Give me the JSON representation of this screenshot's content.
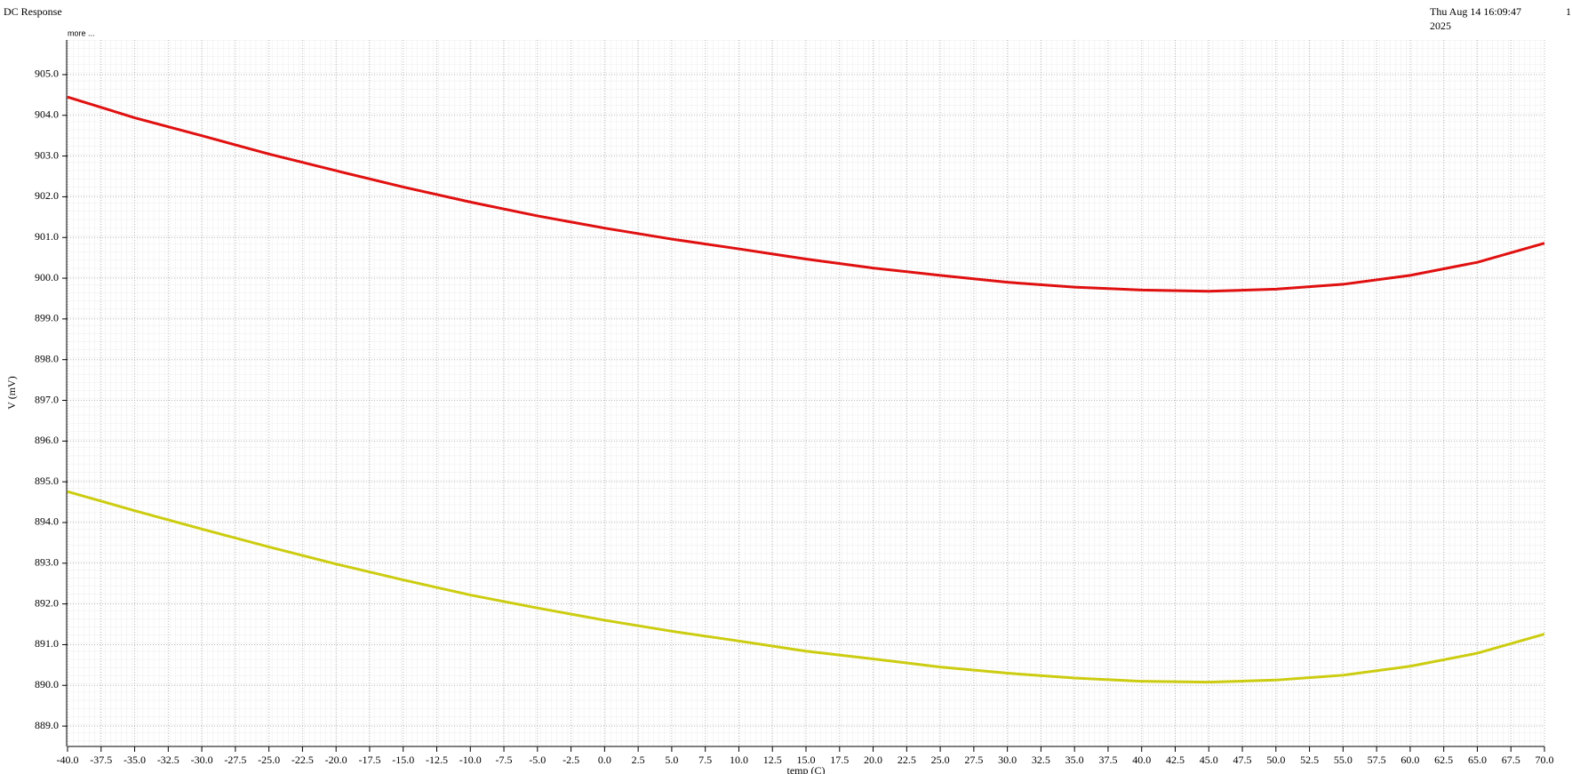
{
  "chart_data": {
    "type": "line",
    "title": "DC Response",
    "timestamp": [
      "Thu Aug 14 16:09:47",
      "2025"
    ],
    "page_number": "1",
    "more_link": "more ...",
    "xlabel": "temp (C)",
    "ylabel": "V (mV)",
    "x": [
      -40,
      -35,
      -30,
      -25,
      -20,
      -15,
      -10,
      -5,
      0,
      5,
      10,
      15,
      20,
      25,
      30,
      35,
      40,
      45,
      50,
      55,
      60,
      65,
      70
    ],
    "series": [
      {
        "color": "#e01010",
        "values": [
          904.45,
          903.94,
          903.5,
          903.05,
          902.64,
          902.24,
          901.87,
          901.53,
          901.23,
          900.96,
          900.72,
          900.47,
          900.25,
          900.07,
          899.9,
          899.78,
          899.71,
          899.68,
          899.73,
          899.85,
          900.07,
          900.39,
          900.86
        ]
      },
      {
        "color": "#cccc10",
        "values": [
          894.76,
          894.29,
          893.84,
          893.4,
          892.98,
          892.59,
          892.22,
          891.9,
          891.6,
          891.33,
          891.09,
          890.84,
          890.65,
          890.45,
          890.3,
          890.18,
          890.1,
          890.08,
          890.13,
          890.25,
          890.47,
          890.79,
          891.26
        ]
      }
    ],
    "xlim": [
      -40,
      70
    ],
    "ylim": [
      888.5,
      905.85
    ],
    "grid": true,
    "xticks": [
      {
        "value": -40,
        "label": "-40.0"
      },
      {
        "value": -37.5,
        "label": "-37.5"
      },
      {
        "value": -35,
        "label": "-35.0"
      },
      {
        "value": -32.5,
        "label": "-32.5"
      },
      {
        "value": -30,
        "label": "-30.0"
      },
      {
        "value": -27.5,
        "label": "-27.5"
      },
      {
        "value": -25,
        "label": "-25.0"
      },
      {
        "value": -22.5,
        "label": "-22.5"
      },
      {
        "value": -20,
        "label": "-20.0"
      },
      {
        "value": -17.5,
        "label": "-17.5"
      },
      {
        "value": -15,
        "label": "-15.0"
      },
      {
        "value": -12.5,
        "label": "-12.5"
      },
      {
        "value": -10,
        "label": "-10.0"
      },
      {
        "value": -7.5,
        "label": "-7.5"
      },
      {
        "value": -5,
        "label": "-5.0"
      },
      {
        "value": -2.5,
        "label": "-2.5"
      },
      {
        "value": 0,
        "label": "0.0"
      },
      {
        "value": 2.5,
        "label": "2.5"
      },
      {
        "value": 5,
        "label": "5.0"
      },
      {
        "value": 7.5,
        "label": "7.5"
      },
      {
        "value": 10,
        "label": "10.0"
      },
      {
        "value": 12.5,
        "label": "12.5"
      },
      {
        "value": 15,
        "label": "15.0"
      },
      {
        "value": 17.5,
        "label": "17.5"
      },
      {
        "value": 20,
        "label": "20.0"
      },
      {
        "value": 22.5,
        "label": "22.5"
      },
      {
        "value": 25,
        "label": "25.0"
      },
      {
        "value": 27.5,
        "label": "27.5"
      },
      {
        "value": 30,
        "label": "30.0"
      },
      {
        "value": 32.5,
        "label": "32.5"
      },
      {
        "value": 35,
        "label": "35.0"
      },
      {
        "value": 37.5,
        "label": "37.5"
      },
      {
        "value": 40,
        "label": "40.0"
      },
      {
        "value": 42.5,
        "label": "42.5"
      },
      {
        "value": 45,
        "label": "45.0"
      },
      {
        "value": 47.5,
        "label": "47.5"
      },
      {
        "value": 50,
        "label": "50.0"
      },
      {
        "value": 52.5,
        "label": "52.5"
      },
      {
        "value": 55,
        "label": "55.0"
      },
      {
        "value": 57.5,
        "label": "57.5"
      },
      {
        "value": 60,
        "label": "60.0"
      },
      {
        "value": 62.5,
        "label": "62.5"
      },
      {
        "value": 65,
        "label": "65.0"
      },
      {
        "value": 67.5,
        "label": "67.5"
      },
      {
        "value": 70,
        "label": "70.0"
      }
    ],
    "yticks": [
      {
        "value": 889,
        "label": "889.0"
      },
      {
        "value": 890,
        "label": "890.0"
      },
      {
        "value": 891,
        "label": "891.0"
      },
      {
        "value": 892,
        "label": "892.0"
      },
      {
        "value": 893,
        "label": "893.0"
      },
      {
        "value": 894,
        "label": "894.0"
      },
      {
        "value": 895,
        "label": "895.0"
      },
      {
        "value": 896,
        "label": "896.0"
      },
      {
        "value": 897,
        "label": "897.0"
      },
      {
        "value": 898,
        "label": "898.0"
      },
      {
        "value": 899,
        "label": "899.0"
      },
      {
        "value": 900,
        "label": "900.0"
      },
      {
        "value": 901,
        "label": "901.0"
      },
      {
        "value": 902,
        "label": "902.0"
      },
      {
        "value": 903,
        "label": "903.0"
      },
      {
        "value": 904,
        "label": "904.0"
      },
      {
        "value": 905,
        "label": "905.0"
      }
    ]
  }
}
